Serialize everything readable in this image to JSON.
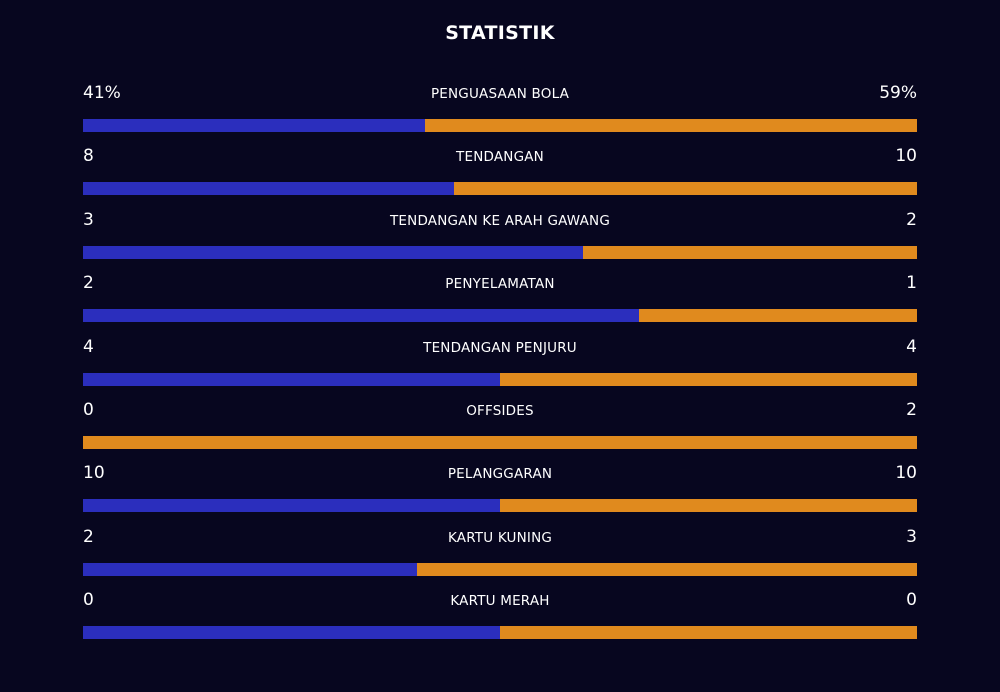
{
  "title": "STATISTIK",
  "colors": {
    "background": "#07061f",
    "home": "#2b2ebd",
    "away": "#e08a1e",
    "text": "#ffffff"
  },
  "chart_data": {
    "type": "bar",
    "title": "STATISTIK",
    "categories": [
      "PENGUASAAN BOLA",
      "TENDANGAN",
      "TENDANGAN KE ARAH GAWANG",
      "PENYELAMATAN",
      "TENDANGAN PENJURU",
      "OFFSIDES",
      "PELANGGARAN",
      "KARTU KUNING",
      "KARTU MERAH"
    ],
    "series": [
      {
        "color": "#2b2ebd",
        "values": [
          41,
          8,
          3,
          2,
          4,
          0,
          10,
          2,
          0
        ]
      },
      {
        "color": "#e08a1e",
        "values": [
          59,
          10,
          2,
          1,
          4,
          2,
          10,
          3,
          0
        ]
      }
    ],
    "display": {
      "left": [
        "41%",
        "8",
        "3",
        "2",
        "4",
        "0",
        "10",
        "2",
        "0"
      ],
      "right": [
        "59%",
        "10",
        "2",
        "1",
        "4",
        "2",
        "10",
        "3",
        "0"
      ]
    },
    "orientation": "horizontal-stacked-share",
    "grid": false,
    "legend": "none"
  }
}
